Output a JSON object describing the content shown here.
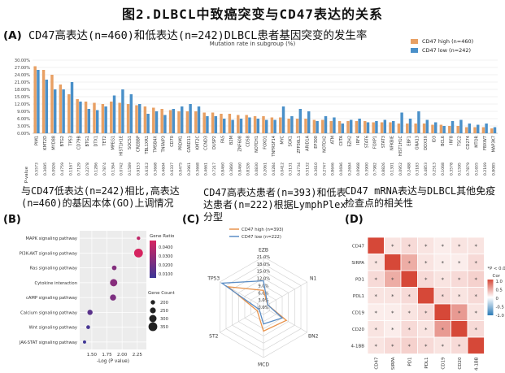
{
  "figure": {
    "title": "图2.DLBCL中致癌突变与CD47表达的关系",
    "panelA": {
      "label": "(A)",
      "title": "CD47高表达(n=460)和低表达(n=242)DLBCL患者基因突变的发生率",
      "subtitle": "Mutation rate in subgroup (%)",
      "pvalue_label": "P-value"
    },
    "panelB": {
      "label": "(B)",
      "heading": "与CD47低表达(n=242)相比,高表达(n=460)的基因本体(GO)上调情况"
    },
    "panelC": {
      "label": "(C)",
      "heading": "CD47高表达患者(n=393)和低表达患者(n=222)根据LymphPlex分型"
    },
    "panelD": {
      "label": "(D)",
      "heading": "CD47 mRNA表达与DLBCL其他免疫检查点的相关性"
    }
  },
  "chart_data": [
    {
      "id": "panelA",
      "type": "bar",
      "title": "Mutation rate in subgroup (%)",
      "ylabel": "",
      "ylim": [
        0,
        30
      ],
      "yticks": [
        "0.00%",
        "3.00%",
        "6.00%",
        "9.00%",
        "12.00%",
        "15.00%",
        "18.00%",
        "21.00%",
        "24.00%",
        "27.00%",
        "30.00%"
      ],
      "categories": [
        "PIM1",
        "KMT2D",
        "MYD88",
        "BTG2",
        "TP53",
        "CD79B",
        "BTG1",
        "DTX1",
        "TET2",
        "MPEG1",
        "HIST1H1E",
        "SOCS1",
        "CREBBP",
        "TBL1XR1",
        "TMSB4X",
        "TNFAIP3",
        "CD70",
        "PRDM1",
        "CARD11",
        "KMT2C",
        "CCND3",
        "DUSP2",
        "FAS",
        "B2M",
        "ZNF608",
        "CD58",
        "NOTCH1",
        "FOXO1",
        "TNFRSF14",
        "MYC",
        "SGK1",
        "ZFP36L1",
        "ARID1A",
        "EP300",
        "NOTCH2",
        "ATM",
        "CIITA",
        "EZH2",
        "IRF4",
        "STAT6",
        "FOXP1",
        "STAT3",
        "NFKBIE",
        "HIST1H1C",
        "EBF1",
        "GNA13",
        "DDX3X",
        "ID3",
        "BCL6",
        "IRF8",
        "TSC2",
        "CD274",
        "MTOR",
        "FBXW7",
        "MAP3K7"
      ],
      "series": [
        {
          "name": "CD47 high (n=460)",
          "color": "#E8A064",
          "values": [
            27.5,
            26,
            24,
            20,
            16,
            14,
            13,
            12.5,
            12,
            13,
            12.5,
            12,
            11.5,
            11,
            10.5,
            10,
            9.5,
            9,
            9,
            9,
            8.5,
            8.5,
            8,
            8,
            7.5,
            7.5,
            7,
            7,
            6.5,
            6.5,
            6,
            6,
            6,
            5.5,
            5.5,
            5,
            5,
            5,
            5,
            5,
            4.5,
            4.5,
            4.5,
            4,
            4,
            4,
            4,
            3.5,
            3.5,
            3,
            3,
            2.5,
            2.5,
            2.5,
            2
          ]
        },
        {
          "name": "CD47 low (n=242)",
          "color": "#4A90C9",
          "values": [
            26,
            22,
            18,
            18,
            21,
            13,
            10,
            9.5,
            11,
            15.5,
            18,
            16,
            12,
            8,
            9,
            7.5,
            10,
            11,
            12,
            11,
            7,
            7,
            6,
            5.5,
            6,
            6.5,
            6,
            5.5,
            5.5,
            11,
            7,
            10,
            9,
            5,
            7,
            6.5,
            4,
            5.5,
            6,
            4.5,
            5,
            5.5,
            5,
            8.5,
            6,
            9,
            5.5,
            4.5,
            3,
            5,
            5.5,
            4,
            3.5,
            4,
            2.5
          ]
        }
      ],
      "pvalues": [
        "0.5573",
        "0.3695",
        "0.0926",
        "0.4759",
        "0.1167",
        "0.7129",
        "0.2278",
        "0.1286",
        "0.7874",
        "0.1364",
        "0.0742",
        "0.1589",
        "0.9153",
        "0.6312",
        "0.3668",
        "0.4604",
        "0.6337",
        "0.0475",
        "0.2961",
        "0.3668",
        "0.4661",
        "0.7217",
        "0.8460",
        "0.3860",
        "0.8460",
        "0.8326",
        "0.0830",
        "0.2061",
        "0.6284",
        "0.0412",
        "0.3131",
        "0.4734",
        "0.5132",
        "0.3610",
        "0.2747",
        "0.8646",
        "0.0696",
        "0.2694",
        "0.0968",
        "0.3900",
        "0.7982",
        "0.8826",
        "0.1301",
        "0.0952",
        "0.2488",
        "0.3183",
        "0.4853",
        "0.2513",
        "0.1068",
        "0.3578",
        "0.1595",
        "0.7879",
        "0.1655",
        "0.2169",
        "0.8085"
      ]
    },
    {
      "id": "panelB",
      "type": "scatter",
      "xlabel": "-Log (P value)",
      "ylabel": "",
      "xlim": [
        1.3,
        2.4
      ],
      "xticks": [
        "1.50",
        "1.75",
        "2.00",
        "2.25"
      ],
      "categories": [
        "MAPK signaling pathway",
        "PI3K-AKT signaling pathway",
        "Ras signaling pathway",
        "Cytokine interaction",
        "cAMP signaling pathway",
        "Calcium signaling pathway",
        "Wnt signaling pathway",
        "JAK-STAT signaling pathway"
      ],
      "x": [
        2.27,
        2.27,
        1.87,
        1.86,
        1.85,
        1.47,
        1.44,
        1.38
      ],
      "gene_ratio": [
        0.04,
        0.046,
        0.024,
        0.025,
        0.022,
        0.013,
        0.008,
        0.006
      ],
      "gene_count": [
        170,
        350,
        210,
        300,
        260,
        230,
        180,
        160
      ],
      "legend": {
        "ratio_title": "Gene Ratio",
        "ratio_ticks": [
          "0.0400",
          "0.0300",
          "0.0200",
          "0.0100"
        ],
        "count_title": "Gene Count",
        "count_ticks": [
          "200",
          "250",
          "300",
          "350"
        ]
      }
    },
    {
      "id": "panelC",
      "type": "radar",
      "axes": [
        "EZB",
        "N1",
        "BN2",
        "MCD",
        "ST2",
        "TP53"
      ],
      "rlim": [
        0,
        21
      ],
      "rticks": [
        "21.0%",
        "18.0%",
        "15.0%",
        "12.0%",
        "9.0%",
        "6.0%",
        "3.0%",
        "0.0%"
      ],
      "series": [
        {
          "name": "CD47 high (n=393)",
          "color": "#E8934C",
          "values": [
            7,
            2,
            11,
            10,
            3,
            17
          ]
        },
        {
          "name": "CD47 low (n=222)",
          "color": "#5B8DC5",
          "values": [
            11,
            2,
            9,
            7,
            2,
            20
          ]
        }
      ]
    },
    {
      "id": "panelD",
      "type": "heatmap",
      "rows": [
        "CD47",
        "SIRPA",
        "PD1",
        "PDL1",
        "CD19",
        "CD20",
        "4-1BB"
      ],
      "cols": [
        "CD47",
        "SIRPA",
        "PD1",
        "PDL1",
        "CD19",
        "CD20",
        "4-1BB"
      ],
      "values": [
        [
          1.0,
          0.15,
          0.2,
          0.15,
          0.1,
          0.15,
          0.15
        ],
        [
          0.15,
          1.0,
          0.45,
          0.15,
          0.1,
          0.1,
          0.2
        ],
        [
          0.2,
          0.45,
          1.0,
          0.2,
          0.15,
          0.2,
          0.25
        ],
        [
          0.15,
          0.15,
          0.2,
          1.0,
          0.2,
          0.15,
          0.2
        ],
        [
          0.1,
          0.1,
          0.15,
          0.2,
          1.0,
          0.55,
          0.15
        ],
        [
          0.15,
          0.1,
          0.2,
          0.15,
          0.55,
          1.0,
          0.2
        ],
        [
          0.15,
          0.2,
          0.25,
          0.2,
          0.15,
          0.2,
          1.0
        ]
      ],
      "marker": "*",
      "legend": {
        "note": "*P < 0.05",
        "title": "Cor",
        "ticks": [
          "1.0",
          "0.5",
          "0",
          "-0.5",
          "-1.0"
        ]
      }
    }
  ]
}
